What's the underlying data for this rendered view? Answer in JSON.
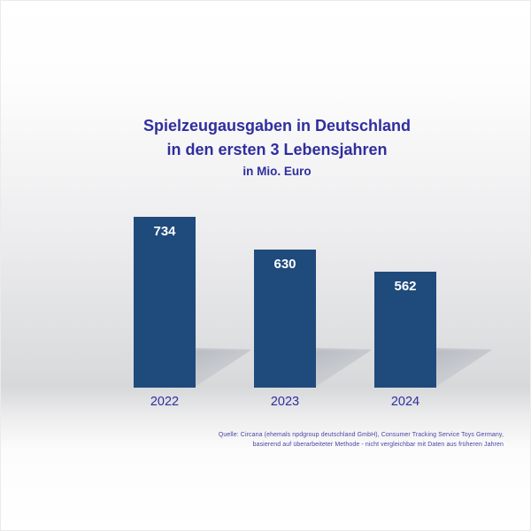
{
  "title": {
    "line1": "Spielzeugausgaben in Deutschland",
    "line2": "in den ersten 3 Lebensjahren",
    "line3": "in Mio. Euro"
  },
  "source": {
    "line1": "Quelle: Circana (ehemals npdgroup deutschland GmbH), Consumer Tracking Service Toys Germany,",
    "line2": "basierend auf überarbeiteter Methode - nicht vergleichbar mit Daten aus früheren Jahren"
  },
  "colors": {
    "bar": "#1f4a7c",
    "title_text": "#302e9e",
    "year_label_text": "#302e9e",
    "value_label_text": "#ffffff",
    "source_text": "#4646a6"
  },
  "chart_data": {
    "type": "bar",
    "title": "Spielzeugausgaben in Deutschland in den ersten 3 Lebensjahren",
    "subtitle": "in Mio. Euro",
    "categories": [
      "2022",
      "2023",
      "2024"
    ],
    "values": [
      734,
      630,
      562
    ],
    "unit": "Mio. Euro",
    "ylim": [
      200,
      780
    ],
    "grid": false,
    "legend": false,
    "value_label_position": "inside-top",
    "bar_color": "#1f4a7c"
  }
}
